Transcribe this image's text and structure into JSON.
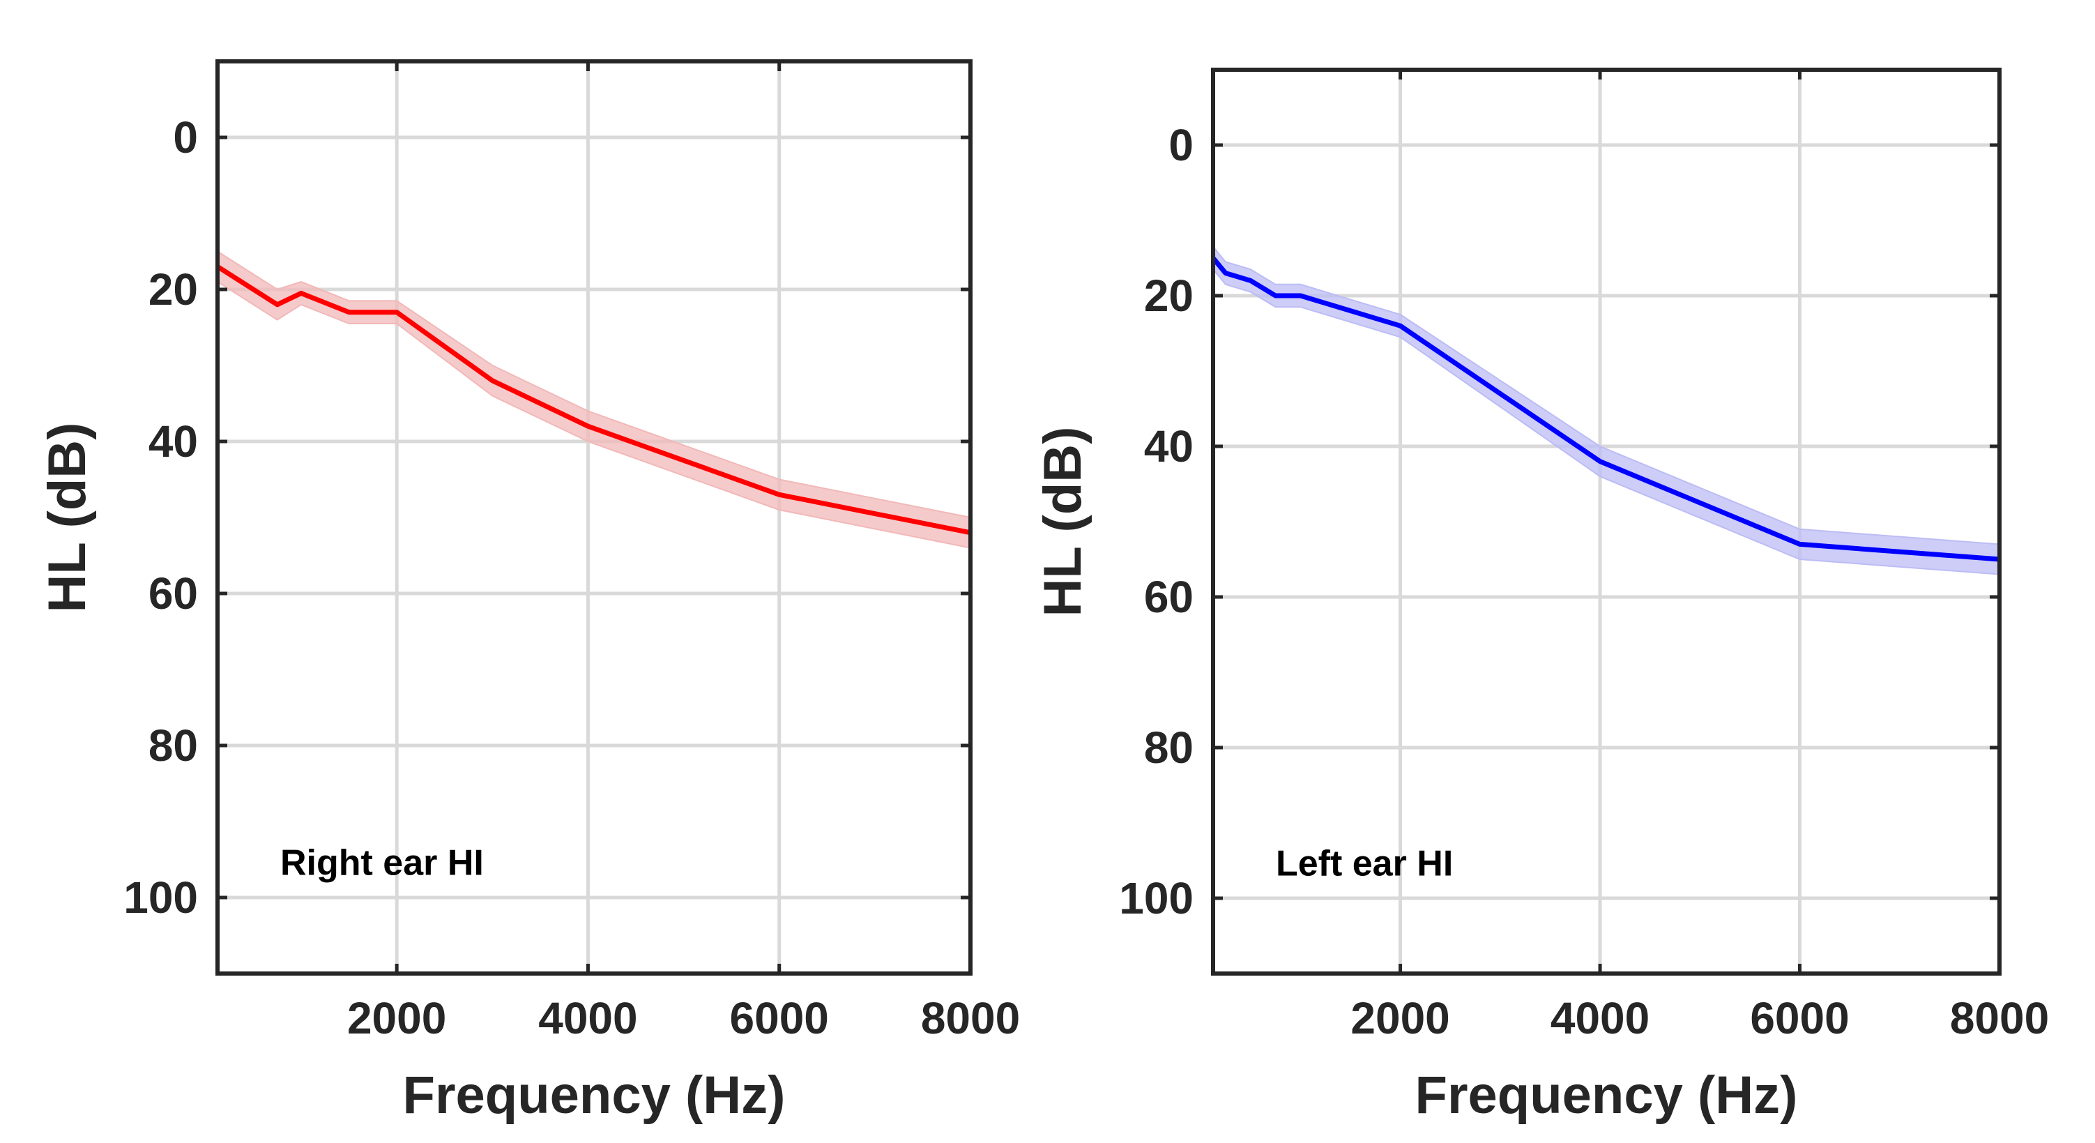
{
  "chart_data": [
    {
      "type": "line",
      "name": "right-ear",
      "xlabel": "Frequency (Hz)",
      "ylabel": "HL (dB)",
      "annotation": "Right ear HI",
      "color": "#ff0000",
      "band_color": "#f2b8b8",
      "xlim": [
        125,
        8000
      ],
      "ylim": [
        110,
        -10
      ],
      "x_ticks": [
        2000,
        4000,
        6000,
        8000
      ],
      "x_tick_labels": [
        "2000",
        "4000",
        "6000",
        "8000"
      ],
      "y_ticks": [
        0,
        20,
        40,
        60,
        80,
        100
      ],
      "y_tick_labels": [
        "0",
        "20",
        "40",
        "60",
        "80",
        "100"
      ],
      "grid": true,
      "x": [
        125,
        750,
        1000,
        1500,
        2000,
        3000,
        4000,
        6000,
        8000
      ],
      "y": [
        17,
        22,
        20.5,
        23,
        23,
        32,
        38,
        47,
        52
      ],
      "band_halfwidth": [
        2,
        2,
        1.5,
        1.5,
        1.5,
        2,
        2,
        2,
        2
      ]
    },
    {
      "type": "line",
      "name": "left-ear",
      "xlabel": "Frequency (Hz)",
      "ylabel": "HL (dB)",
      "annotation": "Left ear HI",
      "color": "#0000ff",
      "band_color": "#bcbcf5",
      "xlim": [
        125,
        8000
      ],
      "ylim": [
        110,
        -10
      ],
      "x_ticks": [
        2000,
        4000,
        6000,
        8000
      ],
      "x_tick_labels": [
        "2000",
        "4000",
        "6000",
        "8000"
      ],
      "y_ticks": [
        0,
        20,
        40,
        60,
        80,
        100
      ],
      "y_tick_labels": [
        "0",
        "20",
        "40",
        "60",
        "80",
        "100"
      ],
      "grid": true,
      "x": [
        125,
        250,
        500,
        750,
        1000,
        2000,
        4000,
        6000,
        8000
      ],
      "y": [
        15,
        17,
        18,
        20,
        20,
        24,
        42,
        53,
        55
      ],
      "band_halfwidth": [
        1.5,
        1.5,
        1.5,
        1.5,
        1.5,
        1.5,
        2,
        2,
        2
      ]
    }
  ]
}
